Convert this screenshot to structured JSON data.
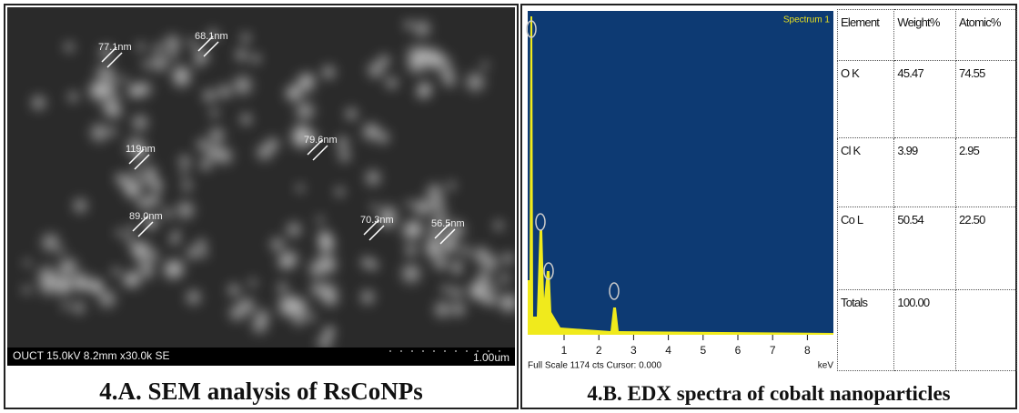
{
  "sem": {
    "measurements": [
      "77.1nm",
      "68.1nm",
      "79.6nm",
      "119nm",
      "89.0nm",
      "70.3nm",
      "56.5nm"
    ],
    "info": "OUCT 15.0kV 8.2mm x30.0k SE",
    "scale": "1.00um",
    "caption": "4.A. SEM analysis of RsCoNPs"
  },
  "edx": {
    "spectrum_label": "Spectrum 1",
    "x_ticks": [
      "1",
      "2",
      "3",
      "4",
      "5",
      "6",
      "7",
      "8"
    ],
    "status": "Full Scale 1174 cts Cursor: 0.000",
    "unit": "keV",
    "caption": "4.B. EDX spectra of cobalt nanoparticles"
  },
  "table": {
    "header": [
      "Element",
      "Weight%",
      "Atomic%"
    ],
    "rows": [
      [
        "O K",
        "45.47",
        "74.55"
      ],
      [
        "Cl K",
        "3.99",
        "2.95"
      ],
      [
        "Co L",
        "50.54",
        "22.50"
      ],
      [
        "Totals",
        "100.00"
      ]
    ]
  }
}
